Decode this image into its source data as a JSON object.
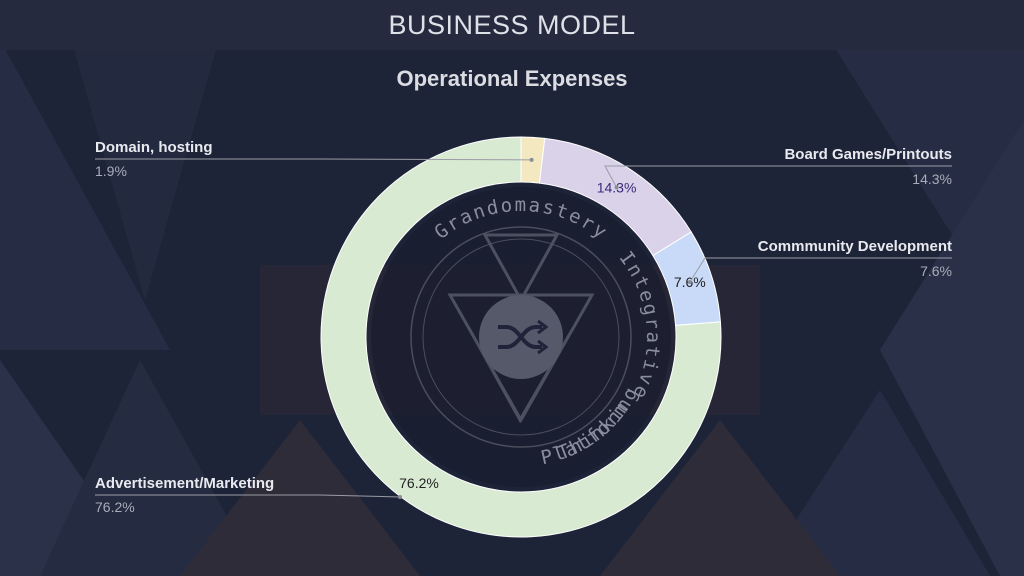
{
  "page_title": "BUSINESS MODEL",
  "logo": {
    "top_text": "Grandomastery",
    "right_text": "Integrative",
    "bottom_text": "Thinking",
    "left_text": "Platform"
  },
  "chart_data": {
    "type": "pie",
    "donut": true,
    "title": "Operational Expenses",
    "legend": "none",
    "categories": [
      "Domain, hosting",
      "Board Games/Printouts",
      "Commmunity Development",
      "Advertisement/Marketing"
    ],
    "values": [
      1.9,
      14.3,
      7.6,
      76.2
    ],
    "value_labels": [
      "1.9%",
      "14.3%",
      "7.6%",
      "76.2%"
    ],
    "slice_labels": [
      "",
      "14.3%",
      "7.6%",
      "76.2%"
    ],
    "colors": [
      "#f4e8c1",
      "#d9d2e9",
      "#c9daf8",
      "#d9ead3"
    ],
    "slice_label_colors": [
      "#333333",
      "#3d2a7a",
      "#222222",
      "#222222"
    ]
  }
}
